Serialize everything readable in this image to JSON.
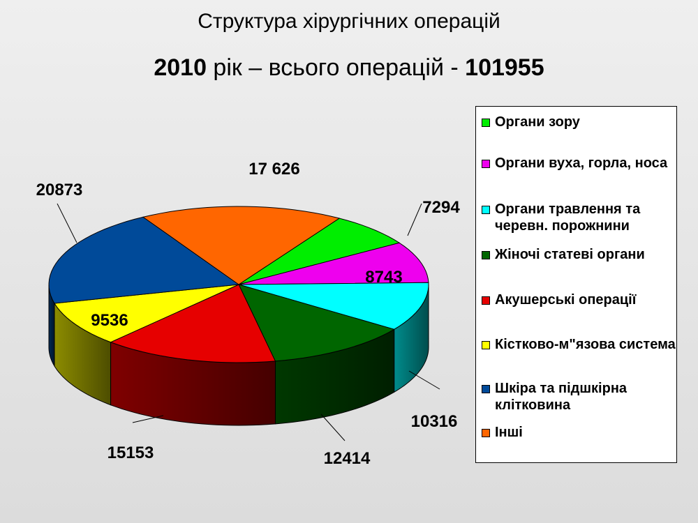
{
  "header": {
    "title": "Структура хірургічних операцій",
    "year": "2010",
    "year_suffix": " рік – всього операцій - ",
    "total": "101955"
  },
  "chart_data": {
    "type": "pie",
    "is_3d": true,
    "categories": [
      "Органи зору",
      "Органи вуха, горла, носа",
      "Органи травлення та черевн. порожнини",
      "Жіночі статеві органи",
      "Акушерські операції",
      "Кістково-м\"язова система",
      "Шкіра та підшкірна клітковина",
      "Інші"
    ],
    "values": [
      7294,
      8743,
      10316,
      12414,
      15153,
      9536,
      20873,
      17626
    ],
    "data_labels": [
      "7294",
      "8743",
      "10316",
      "12414",
      "15153",
      "9536",
      "20873",
      "17 626"
    ],
    "colors": [
      "#00ee00",
      "#ee00ee",
      "#00ffff",
      "#006600",
      "#e60000",
      "#ffff00",
      "#004a99",
      "#ff6600"
    ],
    "legend_position": "right"
  },
  "legend": {
    "items": [
      {
        "label": "Органи зору",
        "color": "#00ee00"
      },
      {
        "label": "Органи вуха, горла, носа",
        "color": "#ee00ee"
      },
      {
        "label": "Органи травлення та черевн. порожнини",
        "color": "#00ffff"
      },
      {
        "label": "Жіночі статеві органи",
        "color": "#006600"
      },
      {
        "label": "Акушерські операції",
        "color": "#e60000"
      },
      {
        "label": "Кістково-м\"язова система",
        "color": "#ffff00"
      },
      {
        "label": "Шкіра та підшкірна клітковина",
        "color": "#004a99"
      },
      {
        "label": "Інші",
        "color": "#ff6600"
      }
    ]
  }
}
